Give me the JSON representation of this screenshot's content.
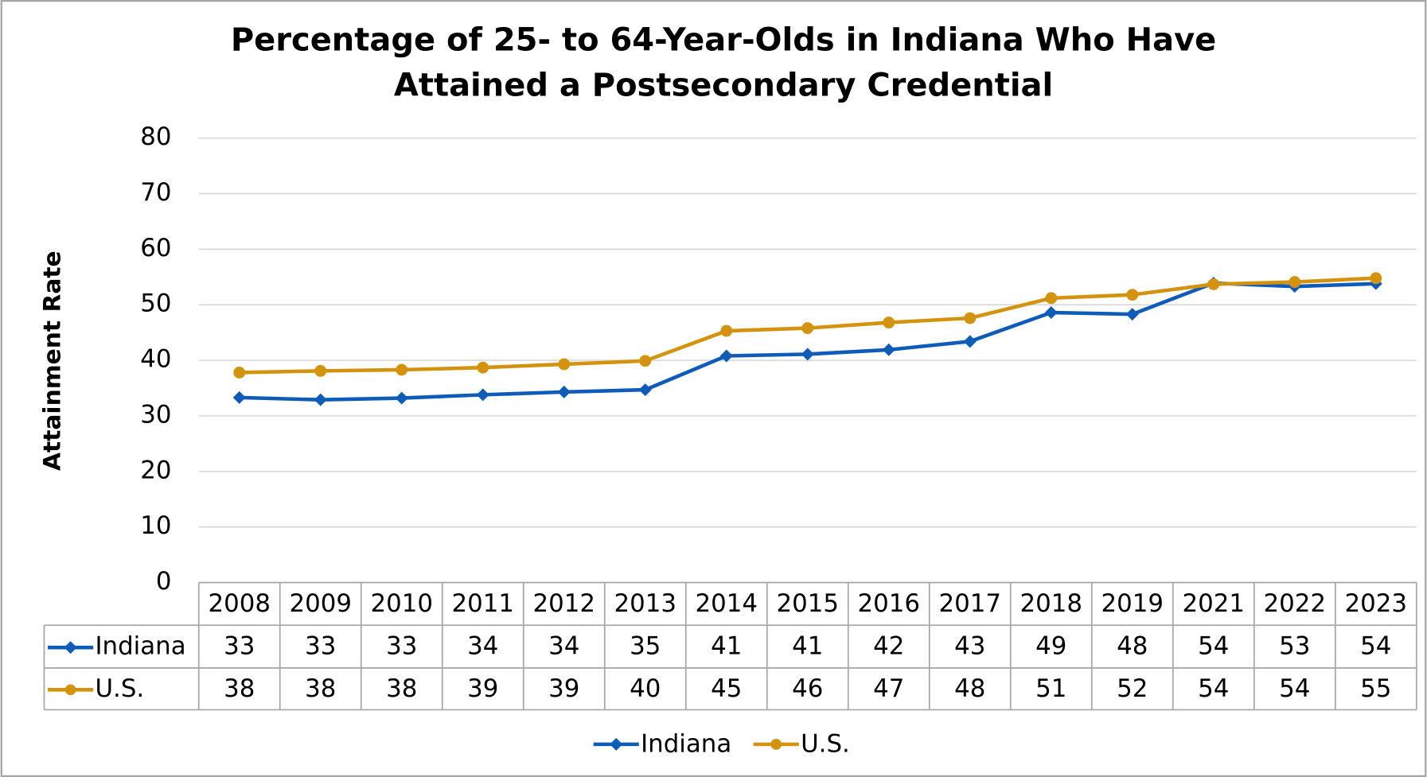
{
  "chart_data": {
    "type": "line",
    "title": "Percentage of 25- to 64-Year-Olds in Indiana Who Have Attained a Postsecondary Credential",
    "y_label": "Attainment Rate",
    "categories": [
      "2008",
      "2009",
      "2010",
      "2011",
      "2012",
      "2013",
      "2014",
      "2015",
      "2016",
      "2017",
      "2018",
      "2019",
      "2021",
      "2022",
      "2023"
    ],
    "series": [
      {
        "name": "Indiana",
        "color": "#0f5cb8",
        "marker": "diamond",
        "values": [
          33.3,
          32.9,
          33.2,
          33.8,
          34.3,
          34.7,
          40.8,
          41.1,
          41.9,
          43.4,
          48.6,
          48.3,
          53.9,
          53.3,
          53.8
        ],
        "value_labels": [
          "33",
          "33",
          "33",
          "34",
          "34",
          "35",
          "41",
          "41",
          "42",
          "43",
          "49",
          "48",
          "54",
          "53",
          "54"
        ]
      },
      {
        "name": "U.S.",
        "color": "#d4930f",
        "marker": "circle",
        "values": [
          37.8,
          38.1,
          38.3,
          38.7,
          39.3,
          39.9,
          45.3,
          45.8,
          46.8,
          47.6,
          51.2,
          51.8,
          53.7,
          54.1,
          54.8
        ],
        "value_labels": [
          "38",
          "38",
          "38",
          "39",
          "39",
          "40",
          "45",
          "46",
          "47",
          "48",
          "51",
          "52",
          "54",
          "54",
          "55"
        ]
      }
    ],
    "ylim": [
      0,
      80
    ],
    "yticks": [
      0,
      10,
      20,
      30,
      40,
      50,
      60,
      70,
      80
    ],
    "grid": true,
    "legend": "bottom",
    "data_table": true
  }
}
